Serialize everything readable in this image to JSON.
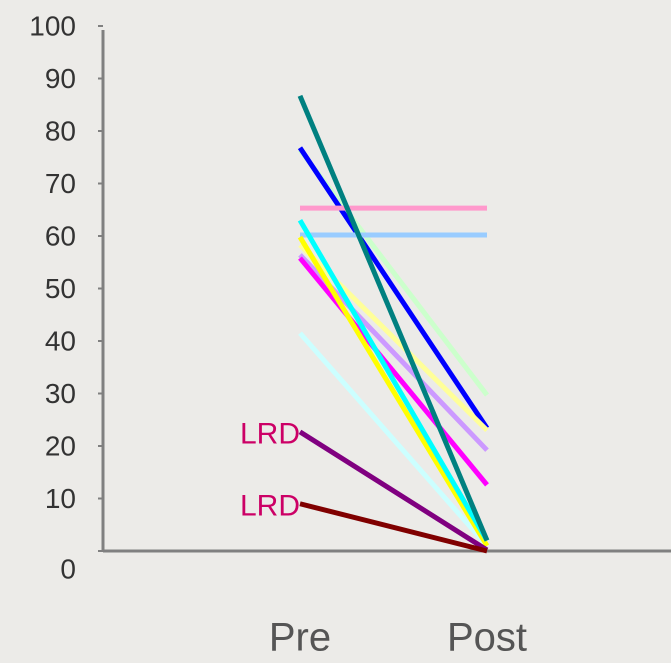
{
  "chart_data": {
    "type": "line",
    "categories": [
      "Pre",
      "Post"
    ],
    "series": [
      {
        "color": "#ccffcc",
        "values": [
          76.4,
          29.7
        ]
      },
      {
        "color": "#0000ff",
        "values": [
          76.8,
          23.4
        ]
      },
      {
        "color": "#ff99cc",
        "values": [
          65.3,
          65.3
        ]
      },
      {
        "color": "#99ccff",
        "values": [
          60.2,
          60.2
        ]
      },
      {
        "color": "#ffff99",
        "values": [
          58.3,
          23
        ]
      },
      {
        "color": "#cc99ff",
        "values": [
          56.4,
          19.2
        ]
      },
      {
        "color": "#ff00ff",
        "values": [
          55.8,
          12.6
        ]
      },
      {
        "color": "#ccffff",
        "values": [
          41.5,
          1
        ]
      },
      {
        "color": "#ffff00",
        "values": [
          59.8,
          1
        ]
      },
      {
        "color": "#00ffff",
        "values": [
          63,
          2
        ]
      },
      {
        "color": "#008080",
        "values": [
          86.7,
          2
        ]
      },
      {
        "color": "#800080",
        "values": [
          22.7,
          0.2
        ]
      },
      {
        "color": "#800000",
        "values": [
          9,
          0
        ]
      }
    ],
    "annotations": [
      {
        "text": "LRD",
        "value": 22.7
      },
      {
        "text": "LRD",
        "value": 9
      }
    ],
    "ylim": [
      0,
      100
    ],
    "yticks": [
      0,
      10,
      20,
      30,
      40,
      50,
      60,
      70,
      80,
      90,
      100
    ]
  }
}
